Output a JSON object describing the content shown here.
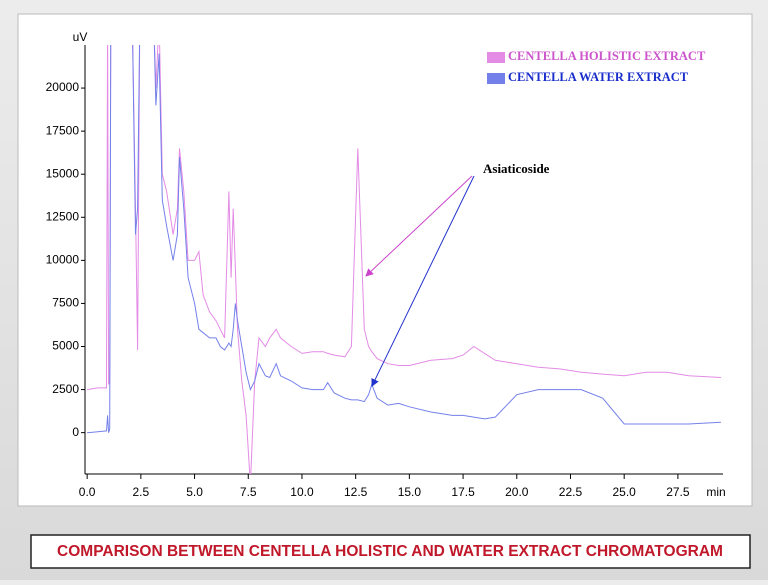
{
  "chart_data": {
    "type": "line",
    "y_label": "uV",
    "x_label": "min",
    "caption": "COMPARISON BETWEEN  CENTELLA  HOLISTIC AND WATER  EXTRACT CHROMATOGRAM",
    "annotation": "Asiaticoside",
    "x": [
      0,
      0.5,
      0.9,
      0.95,
      1.0,
      1.05,
      1.1,
      2.1,
      2.25,
      2.35,
      2.45,
      3.1,
      3.2,
      3.35,
      3.5,
      3.7,
      4.0,
      4.2,
      4.3,
      4.5,
      4.7,
      5.0,
      5.2,
      5.4,
      5.7,
      6.0,
      6.2,
      6.4,
      6.6,
      6.7,
      6.8,
      6.9,
      7.0,
      7.2,
      7.4,
      7.6,
      7.8,
      8.0,
      8.3,
      8.5,
      8.8,
      9.0,
      9.5,
      10.0,
      10.5,
      11.0,
      11.2,
      11.5,
      12.0,
      12.3,
      12.6,
      12.9,
      13.1,
      13.25,
      13.5,
      14.0,
      14.5,
      15.0,
      16.0,
      17.0,
      17.5,
      18.0,
      18.5,
      19.0,
      20.0,
      21.0,
      22.0,
      23.0,
      24.0,
      25.0,
      26.0,
      27.0,
      28.0,
      29.5
    ],
    "series": [
      {
        "name": "CENTELLA  HOLISTIC EXTRACT",
        "color": "#e48be6",
        "values": [
          2500,
          2600,
          2600,
          24000,
          2800,
          3000,
          24000,
          24000,
          13000,
          4800,
          24000,
          24000,
          20000,
          24000,
          15000,
          14000,
          11500,
          13000,
          16500,
          14000,
          10000,
          10000,
          10500,
          8000,
          7000,
          6500,
          6000,
          5500,
          14000,
          9000,
          13000,
          9500,
          6000,
          3000,
          1000,
          -3000,
          3000,
          5500,
          5000,
          5500,
          6000,
          5500,
          5000,
          4600,
          4700,
          4700,
          4600,
          4500,
          4400,
          5000,
          16500,
          6000,
          5000,
          4700,
          4300,
          4000,
          3900,
          3900,
          4200,
          4300,
          4500,
          5000,
          4600,
          4200,
          4000,
          3800,
          3700,
          3500,
          3400,
          3300,
          3500,
          3500,
          3300,
          3200
        ]
      },
      {
        "name": "CENTELLA WATER EXTRACT",
        "color": "#7480ea",
        "values": [
          0,
          50,
          100,
          1000,
          0,
          200,
          24000,
          24000,
          11500,
          13000,
          24000,
          24000,
          19000,
          22000,
          13500,
          12000,
          10000,
          11500,
          16000,
          13000,
          9000,
          7500,
          6000,
          5800,
          5500,
          5500,
          5000,
          4800,
          5200,
          5000,
          6000,
          7500,
          6500,
          5000,
          3500,
          2500,
          3000,
          4000,
          3300,
          3200,
          4000,
          3300,
          3000,
          2600,
          2500,
          2500,
          2900,
          2300,
          2000,
          1900,
          1900,
          1800,
          2200,
          2800,
          2000,
          1600,
          1700,
          1500,
          1200,
          1000,
          1000,
          900,
          800,
          900,
          2200,
          2500,
          2500,
          2500,
          2000,
          500,
          500,
          500,
          500,
          600
        ]
      }
    ],
    "xlim": [
      -0.1,
      29.6
    ],
    "ylim": [
      -2400,
      22500
    ],
    "xticks": [
      {
        "value": 0,
        "label": "0.0"
      },
      {
        "value": 2.5,
        "label": "2.5"
      },
      {
        "value": 5,
        "label": "5.0"
      },
      {
        "value": 7.5,
        "label": "7.5"
      },
      {
        "value": 10,
        "label": "10.0"
      },
      {
        "value": 12.5,
        "label": "12.5"
      },
      {
        "value": 15,
        "label": "15.0"
      },
      {
        "value": 17.5,
        "label": "17.5"
      },
      {
        "value": 20,
        "label": "20.0"
      },
      {
        "value": 22.5,
        "label": "22.5"
      },
      {
        "value": 25,
        "label": "25.0"
      },
      {
        "value": 27.5,
        "label": "27.5"
      }
    ],
    "yticks": [
      0,
      2500,
      5000,
      7500,
      10000,
      12500,
      15000,
      17500,
      20000
    ]
  }
}
